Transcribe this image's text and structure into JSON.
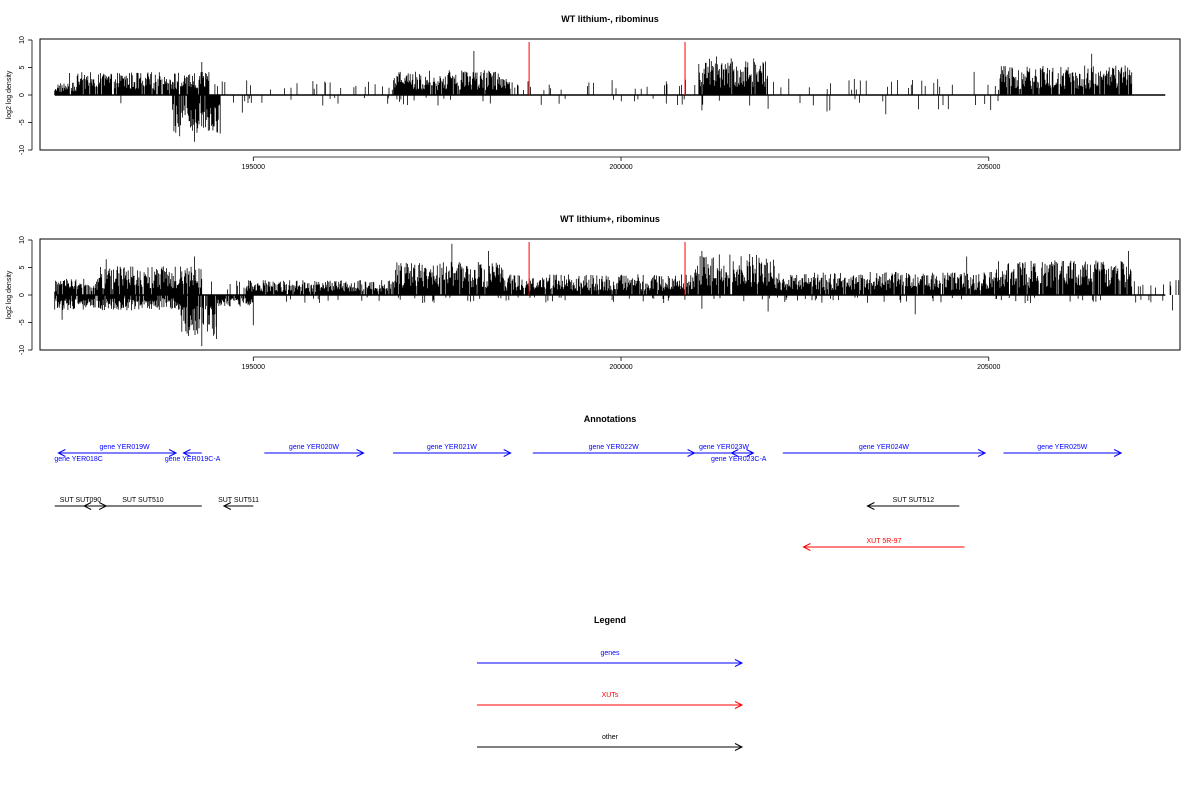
{
  "chart_data": [
    {
      "type": "bar",
      "title": "WT lithium-, ribominus",
      "ylabel": "log2 log density",
      "xlim": [
        192100,
        207600
      ],
      "ylim": [
        -10,
        10
      ],
      "xticks": [
        195000,
        200000,
        205000
      ],
      "yticks": [
        -10,
        -5,
        0,
        5,
        10
      ],
      "grid": false,
      "series": [
        {
          "density": 0.55,
          "blocks_pos": [
            [
              192300,
              192600,
              1.5
            ],
            [
              192500,
              194400,
              2.8
            ],
            [
              196900,
              198500,
              3.0
            ],
            [
              201050,
              202000,
              4.5
            ],
            [
              205150,
              206950,
              3.6
            ]
          ],
          "blocks_neg": [
            [
              193900,
              194550,
              -5.0
            ]
          ],
          "sparse_pos": [
            [
              192600,
              194300,
              2.0
            ],
            [
              194400,
              202000,
              2.0
            ],
            [
              202000,
              205200,
              2.2
            ]
          ],
          "sparse_neg": [
            [
              194500,
              202000,
              -1.2
            ],
            [
              202000,
              205200,
              -1.8
            ]
          ],
          "peaks": [
            [
              198000,
              8.0
            ],
            [
              201300,
              7.0
            ],
            [
              206400,
              7.5
            ],
            [
              194300,
              6.0
            ],
            [
              192500,
              4.0
            ],
            [
              204800,
              4.2
            ]
          ],
          "troughs": [
            [
              194200,
              -8.5
            ],
            [
              194000,
              -7.5
            ],
            [
              194550,
              -7.0
            ],
            [
              194850,
              -3.2
            ],
            [
              202000,
              -2.5
            ],
            [
              202800,
              -3.0
            ],
            [
              203600,
              -3.5
            ],
            [
              201100,
              -2.8
            ],
            [
              193200,
              -1.5
            ]
          ]
        }
      ],
      "markers": [
        {
          "x": 198750,
          "color": "#ff0000"
        },
        {
          "x": 200870,
          "color": "#ff0000"
        }
      ]
    },
    {
      "type": "bar",
      "title": "WT lithium+, ribominus",
      "ylabel": "log2 log density",
      "xlim": [
        192100,
        207600
      ],
      "ylim": [
        -10,
        10
      ],
      "xticks": [
        195000,
        200000,
        205000
      ],
      "yticks": [
        -10,
        -5,
        0,
        5,
        10
      ],
      "grid": false,
      "series": [
        {
          "density": 1.0,
          "blocks_pos": [
            [
              192300,
              192900,
              2.0
            ],
            [
              192900,
              194300,
              3.5
            ],
            [
              194900,
              196900,
              1.8
            ],
            [
              196900,
              198400,
              4.0
            ],
            [
              198400,
              201000,
              2.5
            ],
            [
              201000,
              202100,
              5.0
            ],
            [
              202100,
              205100,
              2.8
            ],
            [
              205100,
              206950,
              4.2
            ]
          ],
          "blocks_neg": [
            [
              192300,
              194000,
              -2.0
            ],
            [
              194000,
              194500,
              -5.5
            ],
            [
              194500,
              195000,
              -1.5
            ]
          ],
          "sparse_pos": [
            [
              192300,
              207600,
              2.2
            ]
          ],
          "sparse_neg": [
            [
              195000,
              207600,
              -1.0
            ]
          ],
          "peaks": [
            [
              197700,
              9.3
            ],
            [
              198200,
              8.0
            ],
            [
              201100,
              8.0
            ],
            [
              193000,
              6.5
            ],
            [
              194200,
              7.0
            ],
            [
              206900,
              8.0
            ],
            [
              205900,
              6.0
            ],
            [
              204700,
              7.0
            ]
          ],
          "troughs": [
            [
              194300,
              -9.3
            ],
            [
              194500,
              -8.0
            ],
            [
              194100,
              -7.0
            ],
            [
              195000,
              -5.5
            ],
            [
              192400,
              -4.5
            ],
            [
              202000,
              -3.0
            ],
            [
              204000,
              -3.5
            ],
            [
              207500,
              -2.8
            ],
            [
              201100,
              -2.5
            ]
          ]
        }
      ],
      "markers": [
        {
          "x": 198750,
          "color": "#ff0000"
        },
        {
          "x": 200870,
          "color": "#ff0000"
        }
      ]
    }
  ],
  "annotations": {
    "title": "Annotations",
    "features": [
      {
        "label": "gene YER018C",
        "start": 192900,
        "end": 192350,
        "row": 0,
        "category": "genes"
      },
      {
        "label": "gene YER019W",
        "start": 192550,
        "end": 193950,
        "row": 0,
        "category": "genes"
      },
      {
        "label": "gene YER019C-A",
        "start": 194300,
        "end": 194050,
        "row": 0,
        "category": "genes"
      },
      {
        "label": "gene YER020W",
        "start": 195150,
        "end": 196500,
        "row": 0,
        "category": "genes"
      },
      {
        "label": "gene YER021W",
        "start": 196900,
        "end": 198500,
        "row": 0,
        "category": "genes"
      },
      {
        "label": "gene YER022W",
        "start": 198800,
        "end": 201000,
        "row": 0,
        "category": "genes"
      },
      {
        "label": "gene YER023W",
        "start": 201000,
        "end": 201800,
        "row": 0,
        "category": "genes"
      },
      {
        "label": "gene YER023C-A",
        "start": 201700,
        "end": 201500,
        "row": 0,
        "category": "genes"
      },
      {
        "label": "gene YER024W",
        "start": 202200,
        "end": 204950,
        "row": 0,
        "category": "genes"
      },
      {
        "label": "gene YER025W",
        "start": 205200,
        "end": 206800,
        "row": 0,
        "category": "genes"
      },
      {
        "label": "SUT SUT090",
        "start": 192300,
        "end": 193000,
        "row": 1,
        "category": "other"
      },
      {
        "label": "SUT SUT510",
        "start": 194300,
        "end": 192700,
        "row": 1,
        "category": "other"
      },
      {
        "label": "SUT SUT511",
        "start": 195000,
        "end": 194600,
        "row": 1,
        "category": "other"
      },
      {
        "label": "SUT SUT512",
        "start": 204600,
        "end": 203350,
        "row": 1,
        "category": "other"
      },
      {
        "label": "XUT 5R-97",
        "start": 204670,
        "end": 202480,
        "row": 2,
        "category": "XUTs"
      }
    ]
  },
  "legend": {
    "title": "Legend",
    "items": [
      {
        "label": "genes",
        "color": "#0000ff"
      },
      {
        "label": "XUTs",
        "color": "#ff0000"
      },
      {
        "label": "other",
        "color": "#000000"
      }
    ]
  },
  "colors": {
    "genes": "#0000ff",
    "XUTs": "#ff0000",
    "other": "#000000",
    "axis": "#000000"
  }
}
